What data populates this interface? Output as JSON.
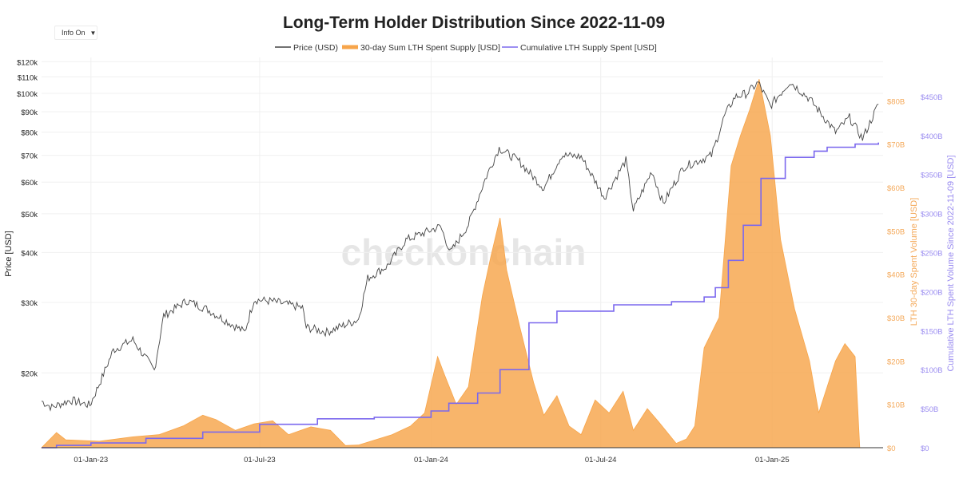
{
  "controls": {
    "dropdown_label": "Info On",
    "dropdown_caret": "▼"
  },
  "colors": {
    "price": "#444444",
    "spent": "#f7a54a",
    "cumulative": "#7b68ee",
    "axis_left": "#222222",
    "axis_right_spent": "#f4a95a",
    "axis_right_cum": "#9a8cf0",
    "watermark": "#e6e6e6"
  },
  "watermark": "checkonchain",
  "chart_data": {
    "type": "line",
    "title": "Long-Term Holder Distribution Since 2022-11-09",
    "legend": [
      "Price (USD)",
      "30-day Sum LTH Spent Supply [USD]",
      "Cumulative LTH Supply Spent [USD]"
    ],
    "legend_position": "top-center",
    "x_ticks": [
      "01-Jan-23",
      "01-Jul-23",
      "01-Jan-24",
      "01-Jul-24",
      "01-Jan-25"
    ],
    "x_range": [
      "2022-11-09",
      "2025-04-30"
    ],
    "y_left": {
      "label": "Price [USD]",
      "scale": "log",
      "ticks": [
        [
          "$20k",
          20000
        ],
        [
          "$30k",
          30000
        ],
        [
          "$40k",
          40000
        ],
        [
          "$50k",
          50000
        ],
        [
          "$60k",
          60000
        ],
        [
          "$70k",
          70000
        ],
        [
          "$80k",
          80000
        ],
        [
          "$90k",
          90000
        ],
        [
          "$100k",
          100000
        ],
        [
          "$110k",
          110000
        ],
        [
          "$120k",
          120000
        ]
      ]
    },
    "y_right1": {
      "label": "LTH 30-day Spent Volume [USD]",
      "range": [
        0,
        90
      ],
      "ticks": [
        "$0",
        "$10B",
        "$20B",
        "$30B",
        "$40B",
        "$50B",
        "$60B",
        "$70B",
        "$80B"
      ]
    },
    "y_right2": {
      "label": "Cumulative LTH Spent Volume Since 2022-11-09 [USD]",
      "range": [
        0,
        500
      ],
      "ticks": [
        "$0",
        "$50B",
        "$100B",
        "$150B",
        "$200B",
        "$250B",
        "$300B",
        "$350B",
        "$400B",
        "$450B"
      ]
    },
    "series": [
      {
        "name": "Price (USD)",
        "axis": "left",
        "unit": "USD",
        "points": [
          [
            "2022-11-09",
            17000
          ],
          [
            "2022-11-20",
            16400
          ],
          [
            "2022-12-10",
            17100
          ],
          [
            "2022-12-31",
            16600
          ],
          [
            "2023-01-13",
            19500
          ],
          [
            "2023-01-25",
            22800
          ],
          [
            "2023-02-15",
            24200
          ],
          [
            "2023-03-10",
            20300
          ],
          [
            "2023-03-20",
            27800
          ],
          [
            "2023-04-14",
            30300
          ],
          [
            "2023-05-05",
            28900
          ],
          [
            "2023-06-15",
            25300
          ],
          [
            "2023-06-25",
            30500
          ],
          [
            "2023-07-15",
            30200
          ],
          [
            "2023-08-16",
            29100
          ],
          [
            "2023-08-20",
            26000
          ],
          [
            "2023-09-11",
            25300
          ],
          [
            "2023-10-15",
            27200
          ],
          [
            "2023-10-25",
            34500
          ],
          [
            "2023-11-15",
            37000
          ],
          [
            "2023-12-05",
            43000
          ],
          [
            "2024-01-11",
            46500
          ],
          [
            "2024-01-22",
            40000
          ],
          [
            "2024-02-10",
            47000
          ],
          [
            "2024-02-28",
            61000
          ],
          [
            "2024-03-14",
            73000
          ],
          [
            "2024-04-05",
            67500
          ],
          [
            "2024-04-15",
            63500
          ],
          [
            "2024-05-01",
            58000
          ],
          [
            "2024-05-20",
            70000
          ],
          [
            "2024-06-10",
            69500
          ],
          [
            "2024-07-05",
            55000
          ],
          [
            "2024-07-28",
            68000
          ],
          [
            "2024-08-05",
            51000
          ],
          [
            "2024-08-25",
            64000
          ],
          [
            "2024-09-06",
            53000
          ],
          [
            "2024-09-28",
            65500
          ],
          [
            "2024-10-28",
            70000
          ],
          [
            "2024-11-11",
            88000
          ],
          [
            "2024-11-22",
            98000
          ],
          [
            "2024-12-05",
            100000
          ],
          [
            "2024-12-17",
            106500
          ],
          [
            "2024-12-30",
            93000
          ],
          [
            "2025-01-20",
            107000
          ],
          [
            "2025-02-10",
            97000
          ],
          [
            "2025-03-10",
            80000
          ],
          [
            "2025-03-25",
            87000
          ],
          [
            "2025-04-08",
            77000
          ],
          [
            "2025-04-25",
            94000
          ]
        ]
      },
      {
        "name": "30-day Sum LTH Spent Supply [USD]",
        "axis": "right1",
        "unit": "billion USD",
        "type": "area",
        "points": [
          [
            "2022-11-09",
            0
          ],
          [
            "2022-11-25",
            3.5
          ],
          [
            "2022-12-05",
            1.8
          ],
          [
            "2023-01-10",
            1.5
          ],
          [
            "2023-02-15",
            2.5
          ],
          [
            "2023-03-15",
            3
          ],
          [
            "2023-04-10",
            5
          ],
          [
            "2023-05-01",
            7.5
          ],
          [
            "2023-05-15",
            6.5
          ],
          [
            "2023-06-05",
            4
          ],
          [
            "2023-06-25",
            5.5
          ],
          [
            "2023-07-15",
            6.2
          ],
          [
            "2023-08-01",
            3
          ],
          [
            "2023-08-25",
            4.8
          ],
          [
            "2023-09-15",
            4
          ],
          [
            "2023-10-01",
            0.5
          ],
          [
            "2023-10-15",
            0.6
          ],
          [
            "2023-11-05",
            2
          ],
          [
            "2023-11-20",
            3
          ],
          [
            "2023-12-10",
            5
          ],
          [
            "2023-12-25",
            8
          ],
          [
            "2024-01-08",
            21
          ],
          [
            "2024-01-15",
            17
          ],
          [
            "2024-01-28",
            10
          ],
          [
            "2024-02-10",
            14
          ],
          [
            "2024-02-25",
            35
          ],
          [
            "2024-03-05",
            44
          ],
          [
            "2024-03-15",
            53
          ],
          [
            "2024-03-22",
            41
          ],
          [
            "2024-04-05",
            28
          ],
          [
            "2024-04-20",
            15
          ],
          [
            "2024-05-01",
            7.5
          ],
          [
            "2024-05-15",
            12
          ],
          [
            "2024-05-28",
            5
          ],
          [
            "2024-06-10",
            3
          ],
          [
            "2024-06-25",
            11
          ],
          [
            "2024-07-10",
            8
          ],
          [
            "2024-07-25",
            13
          ],
          [
            "2024-08-05",
            4
          ],
          [
            "2024-08-20",
            9
          ],
          [
            "2024-09-01",
            6
          ],
          [
            "2024-09-20",
            1
          ],
          [
            "2024-10-01",
            2
          ],
          [
            "2024-10-10",
            5
          ],
          [
            "2024-10-20",
            23
          ],
          [
            "2024-11-05",
            30
          ],
          [
            "2024-11-18",
            65
          ],
          [
            "2024-11-28",
            72
          ],
          [
            "2024-12-08",
            78
          ],
          [
            "2024-12-18",
            85
          ],
          [
            "2024-12-30",
            72
          ],
          [
            "2025-01-10",
            48
          ],
          [
            "2025-01-25",
            32
          ],
          [
            "2025-02-10",
            20
          ],
          [
            "2025-02-20",
            8
          ],
          [
            "2025-03-01",
            14
          ],
          [
            "2025-03-10",
            20
          ],
          [
            "2025-03-20",
            24
          ],
          [
            "2025-03-31",
            21
          ],
          [
            "2025-04-05",
            0
          ]
        ]
      },
      {
        "name": "Cumulative LTH Supply Spent [USD]",
        "axis": "right2",
        "unit": "billion USD",
        "points": [
          [
            "2022-11-09",
            0
          ],
          [
            "2022-11-25",
            3
          ],
          [
            "2023-01-01",
            6
          ],
          [
            "2023-03-01",
            12
          ],
          [
            "2023-05-01",
            20
          ],
          [
            "2023-07-01",
            30
          ],
          [
            "2023-09-01",
            37
          ],
          [
            "2023-11-01",
            39
          ],
          [
            "2024-01-01",
            47
          ],
          [
            "2024-01-20",
            57
          ],
          [
            "2024-02-20",
            70
          ],
          [
            "2024-03-15",
            100
          ],
          [
            "2024-04-15",
            160
          ],
          [
            "2024-05-15",
            175
          ],
          [
            "2024-07-15",
            183
          ],
          [
            "2024-09-15",
            187
          ],
          [
            "2024-10-20",
            193
          ],
          [
            "2024-11-01",
            205
          ],
          [
            "2024-11-15",
            240
          ],
          [
            "2024-12-01",
            285
          ],
          [
            "2024-12-20",
            345
          ],
          [
            "2025-01-15",
            372
          ],
          [
            "2025-02-15",
            380
          ],
          [
            "2025-03-01",
            385
          ],
          [
            "2025-03-31",
            389
          ],
          [
            "2025-04-25",
            391
          ]
        ]
      }
    ]
  }
}
